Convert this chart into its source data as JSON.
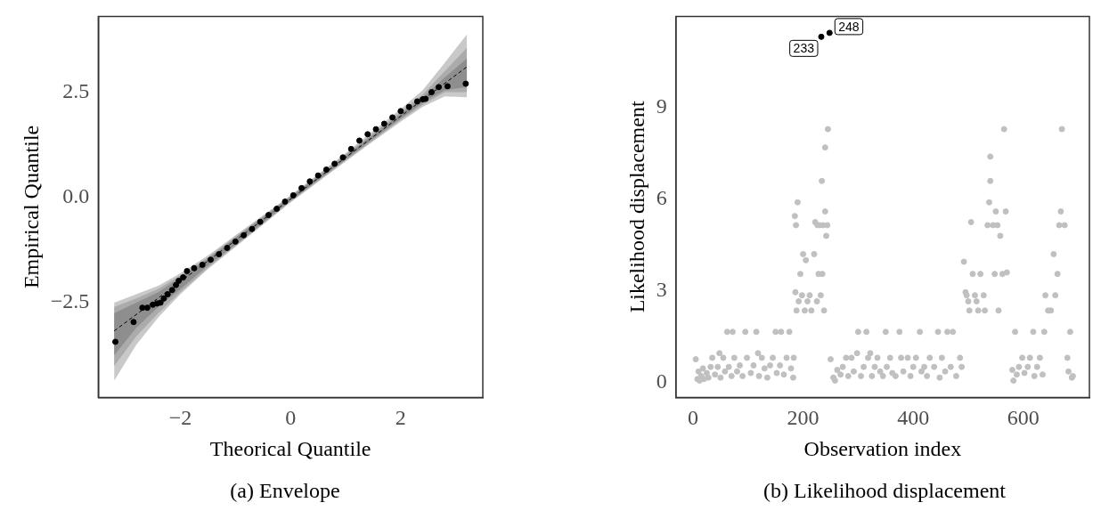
{
  "chart_data": [
    {
      "type": "scatter",
      "xlabel": "Theorical Quantile",
      "ylabel": "Empirical Quantile",
      "xlim": [
        -3.49,
        3.49
      ],
      "ylim": [
        -4.75,
        4.3
      ],
      "xticks": [
        -2,
        0,
        2
      ],
      "yticks": [
        -2.5,
        {
          "value": 0,
          "label": "0.0"
        },
        2.5
      ],
      "annotations": [
        "(a) Envelope"
      ],
      "series": [
        {
          "type": "line",
          "line_style": "dashed",
          "color": "#000000",
          "x": [
            -3.2,
            -2.8,
            -2.4,
            -2,
            -1.5,
            -1,
            0,
            1,
            1.5,
            2,
            2.4,
            2.8,
            3.2
          ],
          "values": [
            -3.17,
            -2.78,
            -2.39,
            -2.0,
            -1.51,
            -1.02,
            -0.04,
            0.95,
            1.44,
            1.93,
            2.32,
            2.71,
            3.1
          ],
          "lower": [
            -4.35,
            -3.5,
            -2.85,
            -2.3,
            -1.7,
            -1.18,
            -0.12,
            0.85,
            1.33,
            1.8,
            2.15,
            2.4,
            2.38
          ],
          "upper": [
            -2.5,
            -2.3,
            -2.1,
            -1.8,
            -1.38,
            -0.9,
            0.05,
            1.05,
            1.58,
            2.1,
            2.55,
            3.2,
            3.87
          ]
        },
        {
          "type": "line",
          "color": "#ababab",
          "x": [
            -3.2,
            -2.8,
            -2.4,
            -2,
            -1.5,
            -1,
            0,
            1,
            1.5,
            2,
            2.4,
            2.8,
            3.2
          ],
          "values": [
            null,
            null,
            null,
            null,
            null,
            null,
            null,
            null,
            null,
            null,
            null,
            null,
            null
          ],
          "lower": [
            -4.0,
            -3.3,
            -2.75,
            -2.25,
            -1.67,
            -1.15,
            -0.1,
            0.88,
            1.36,
            1.84,
            2.2,
            2.5,
            2.5
          ],
          "upper": [
            -2.6,
            -2.4,
            -2.17,
            -1.85,
            -1.42,
            -0.93,
            0.03,
            1.02,
            1.53,
            2.03,
            2.45,
            3.0,
            3.55
          ]
        },
        {
          "type": "line",
          "color": "#8e8e8e",
          "x": [
            -3.2,
            -2.8,
            -2.4,
            -2,
            -1.5,
            -1,
            0,
            1,
            1.5,
            2,
            2.4,
            2.8,
            3.2
          ],
          "values": [
            null,
            null,
            null,
            null,
            null,
            null,
            null,
            null,
            null,
            null,
            null,
            null,
            null
          ],
          "lower": [
            -3.75,
            -3.1,
            -2.6,
            -2.18,
            -1.62,
            -1.12,
            -0.08,
            0.9,
            1.39,
            1.87,
            2.25,
            2.55,
            2.62
          ],
          "upper": [
            -2.75,
            -2.5,
            -2.25,
            -1.9,
            -1.46,
            -0.96,
            0.01,
            0.99,
            1.49,
            1.98,
            2.38,
            2.85,
            3.3
          ]
        },
        {
          "type": "scatter",
          "color": "#000000",
          "x": [
            -3.18,
            -2.85,
            -2.69,
            -2.6,
            -2.5,
            -2.42,
            -2.36,
            -2.3,
            -2.23,
            -2.15,
            -2.08,
            -2.03,
            -1.95,
            -1.88,
            -1.75,
            -1.6,
            -1.45,
            -1.3,
            -1.15,
            -1.0,
            -0.85,
            -0.7,
            -0.55,
            -0.4,
            -0.25,
            -0.1,
            0.05,
            0.2,
            0.35,
            0.5,
            0.65,
            0.8,
            0.95,
            1.1,
            1.25,
            1.4,
            1.55,
            1.7,
            1.85,
            2.0,
            2.15,
            2.3,
            2.4,
            2.45,
            2.56,
            2.69,
            2.85,
            3.18
          ],
          "values": [
            -3.43,
            -2.96,
            -2.62,
            -2.62,
            -2.55,
            -2.52,
            -2.5,
            -2.4,
            -2.3,
            -2.2,
            -2.08,
            -1.98,
            -1.9,
            -1.75,
            -1.68,
            -1.6,
            -1.48,
            -1.35,
            -1.2,
            -1.05,
            -0.9,
            -0.75,
            -0.58,
            -0.42,
            -0.27,
            -0.1,
            0.05,
            0.22,
            0.38,
            0.52,
            0.66,
            0.8,
            0.95,
            1.15,
            1.35,
            1.5,
            1.62,
            1.75,
            1.9,
            2.05,
            2.15,
            2.28,
            2.33,
            2.34,
            2.5,
            2.62,
            2.64,
            2.7
          ]
        }
      ]
    },
    {
      "type": "scatter",
      "xlabel": "Observation index",
      "ylabel": "Likelihood displacement",
      "xlim": [
        -31,
        720
      ],
      "ylim": [
        -0.5,
        12
      ],
      "xticks": [
        0,
        200,
        400,
        600
      ],
      "yticks": [
        0,
        3,
        6,
        9
      ],
      "annotations": [
        {
          "text": "233",
          "x": 233,
          "y": 11.33
        },
        {
          "text": "248",
          "x": 248,
          "y": 11.46
        },
        "(b) Likelihood displacement"
      ],
      "series": [
        {
          "color": "#c0c0c0",
          "x": [
            5,
            8,
            10,
            12,
            15,
            18,
            20,
            25,
            28,
            32,
            35,
            40,
            45,
            48,
            50,
            55,
            58,
            62,
            65,
            70,
            72,
            75,
            80,
            85,
            90,
            95,
            98,
            105,
            110,
            115,
            118,
            120,
            125,
            130,
            135,
            140,
            145,
            150,
            152,
            158,
            160,
            165,
            170,
            175,
            178,
            182,
            183,
            185,
            186,
            187,
            188,
            190,
            192,
            195,
            198,
            200,
            203,
            205,
            208,
            212,
            215,
            220,
            222,
            225,
            226,
            228,
            230,
            232,
            234,
            235,
            236,
            238,
            240,
            240,
            242,
            244,
            245,
            250,
            255,
            258,
            262,
            268,
            272,
            278,
            282,
            288,
            292,
            298,
            300,
            305,
            310,
            315,
            318,
            322,
            325,
            330,
            335,
            340,
            345,
            350,
            352,
            358,
            362,
            368,
            375,
            378,
            382,
            390,
            395,
            400,
            405,
            412,
            415,
            420,
            425,
            430,
            438,
            445,
            448,
            452,
            458,
            462,
            468,
            472,
            478,
            485,
            488,
            492,
            495,
            497,
            500,
            502,
            505,
            508,
            512,
            515,
            518,
            522,
            528,
            530,
            535,
            538,
            540,
            540,
            545,
            548,
            550,
            553,
            555,
            558,
            562,
            565,
            568,
            570,
            580,
            582,
            585,
            588,
            592,
            598,
            602,
            608,
            612,
            618,
            620,
            625,
            630,
            635,
            638,
            640,
            645,
            650,
            655,
            658,
            662,
            665,
            668,
            670,
            675,
            680,
            682,
            685,
            688,
            690
          ],
          "values": [
            0.75,
            0.1,
            0.35,
            0.05,
            0.2,
            0.45,
            0.1,
            0.3,
            0.15,
            0.5,
            0.8,
            0.25,
            0.5,
            0.95,
            0.15,
            0.8,
            0.35,
            1.65,
            0.5,
            0.2,
            1.65,
            0.8,
            0.35,
            0.55,
            0.2,
            1.65,
            0.8,
            0.3,
            0.55,
            1.65,
            0.95,
            0.2,
            0.8,
            0.45,
            0.15,
            0.55,
            0.8,
            1.65,
            0.3,
            0.55,
            1.65,
            0.25,
            0.8,
            1.65,
            0.45,
            0.15,
            0.8,
            5.45,
            2.95,
            5.15,
            2.35,
            5.9,
            2.65,
            3.55,
            2.85,
            4.2,
            2.35,
            4.0,
            2.65,
            2.85,
            2.35,
            4.2,
            5.25,
            2.65,
            5.15,
            3.55,
            5.15,
            2.85,
            6.6,
            3.55,
            5.15,
            2.35,
            7.7,
            5.6,
            4.8,
            5.15,
            8.3,
            0.75,
            0.15,
            0.05,
            0.4,
            0.25,
            0.5,
            0.8,
            0.2,
            0.8,
            0.35,
            0.95,
            1.65,
            0.2,
            0.5,
            1.65,
            0.8,
            0.95,
            0.2,
            0.5,
            0.8,
            0.35,
            0.2,
            1.65,
            0.5,
            0.8,
            0.3,
            0.2,
            1.65,
            0.8,
            0.35,
            0.8,
            0.2,
            0.5,
            0.8,
            1.65,
            0.35,
            0.5,
            0.2,
            0.8,
            0.5,
            1.65,
            0.15,
            0.8,
            0.35,
            1.65,
            0.5,
            1.65,
            0.2,
            0.8,
            0.5,
            3.95,
            2.95,
            2.85,
            2.65,
            2.35,
            5.25,
            3.55,
            2.85,
            2.65,
            2.35,
            3.55,
            2.85,
            2.35,
            5.15,
            5.9,
            6.6,
            7.4,
            5.15,
            3.55,
            5.6,
            5.15,
            2.35,
            4.8,
            3.55,
            8.3,
            5.6,
            3.6,
            0.4,
            0.05,
            1.65,
            0.25,
            0.5,
            0.8,
            0.3,
            0.5,
            0.8,
            1.65,
            0.2,
            0.5,
            0.8,
            0.25,
            1.65,
            2.85,
            2.35,
            2.35,
            4.2,
            2.85,
            3.55,
            5.15,
            5.6,
            8.3,
            5.15,
            0.8,
            0.35,
            1.65,
            0.15,
            0.2
          ]
        },
        {
          "color": "#000000",
          "x": [
            233,
            248
          ],
          "values": [
            11.33,
            11.46
          ]
        }
      ]
    }
  ]
}
